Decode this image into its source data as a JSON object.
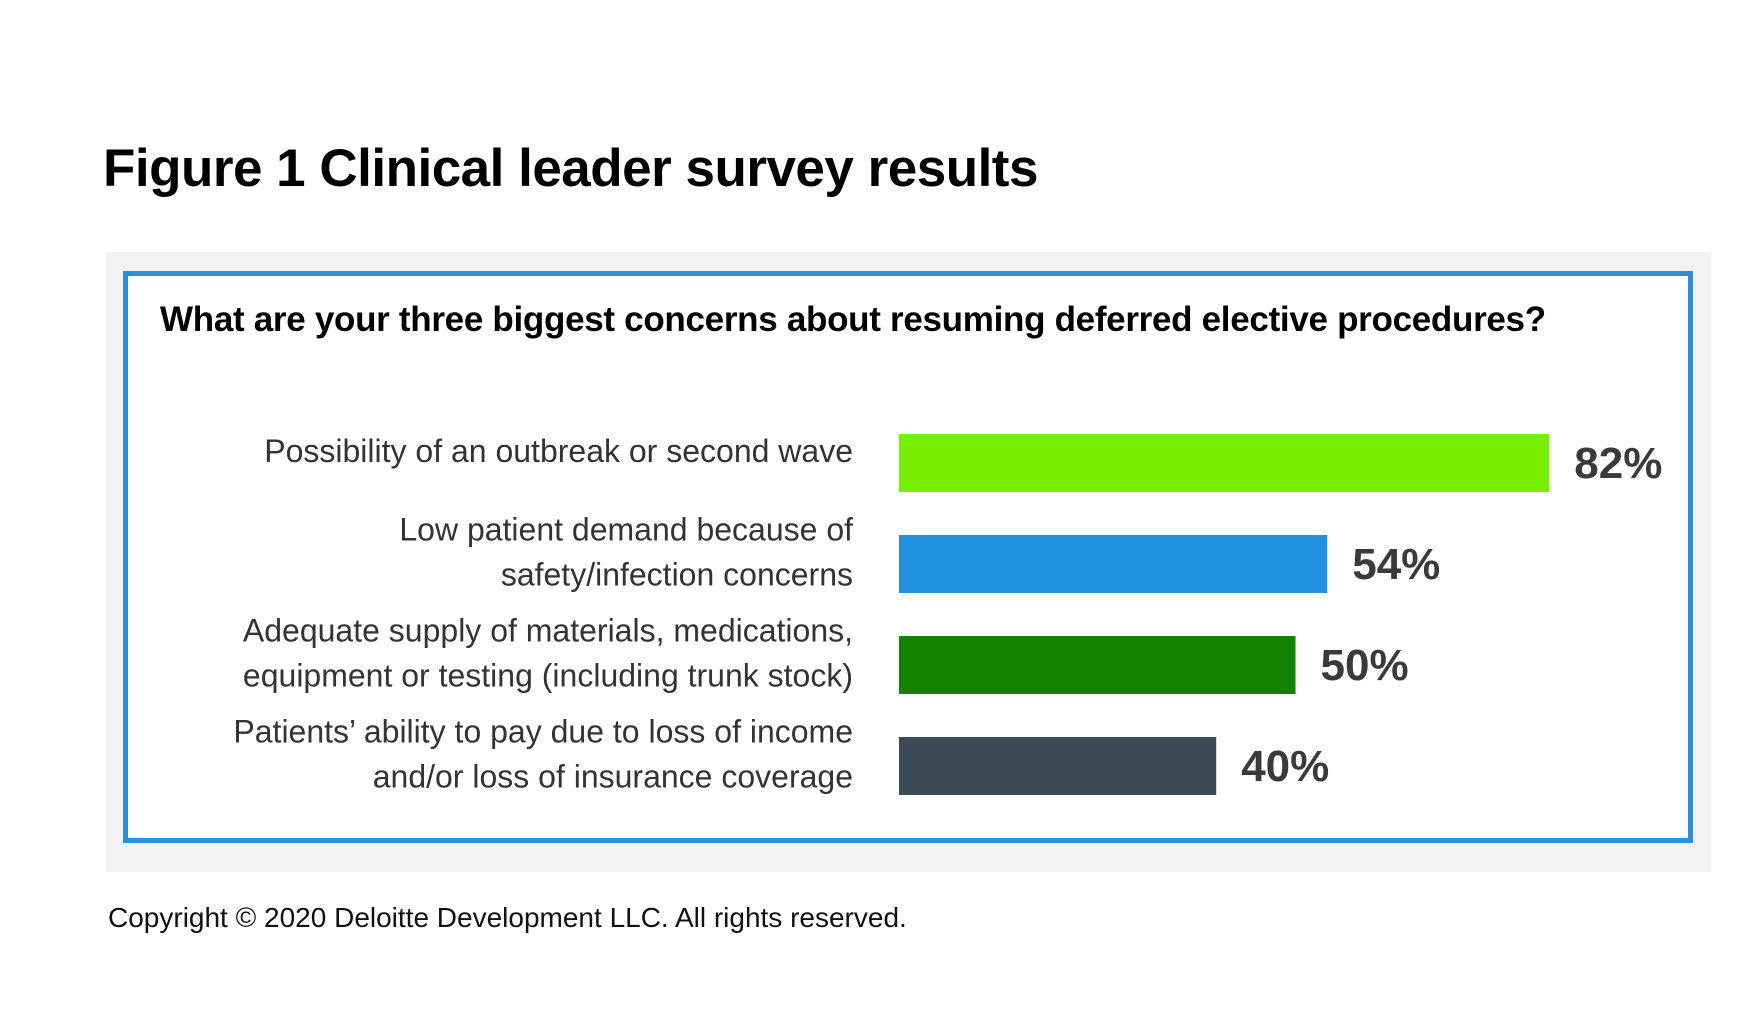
{
  "figure": {
    "title": "Figure 1  Clinical leader survey results",
    "copyright": "Copyright © 2020 Deloitte Development LLC. All rights reserved."
  },
  "chart_data": {
    "type": "bar",
    "orientation": "horizontal",
    "title": "What are your three biggest concerns about resuming deferred elective procedures?",
    "categories": [
      [
        "Possibility of an outbreak or second wave"
      ],
      [
        "Low patient demand because of",
        "safety/infection concerns"
      ],
      [
        "Adequate supply of materials, medications,",
        "equipment or testing (including trunk stock)"
      ],
      [
        "Patients’ ability to pay due to loss of income",
        "and/or loss of insurance coverage"
      ]
    ],
    "values": [
      82,
      54,
      50,
      40
    ],
    "value_labels": [
      "82%",
      "54%",
      "50%",
      "40%"
    ],
    "colors": [
      "#76ee00",
      "#2290e0",
      "#138200",
      "#3b4a55"
    ],
    "xlim": [
      0,
      100
    ],
    "grid": false,
    "legend": "none"
  }
}
